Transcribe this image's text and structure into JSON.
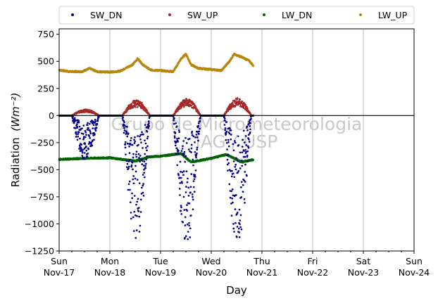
{
  "chart_data": {
    "type": "scatter",
    "xlabel": "Day",
    "ylabel": "Radiation",
    "ylabel_units": "(Wm⁻²)",
    "ylim": [
      -1250,
      800
    ],
    "yticks": [
      750,
      500,
      250,
      0,
      -250,
      -500,
      -750,
      -1000,
      -1250
    ],
    "x_range_days": [
      0,
      7
    ],
    "x_tick_labels": [
      {
        "day": 0,
        "weekday": "Sun",
        "date": "Nov-17"
      },
      {
        "day": 1,
        "weekday": "Mon",
        "date": "Nov-18"
      },
      {
        "day": 2,
        "weekday": "Tue",
        "date": "Nov-19"
      },
      {
        "day": 3,
        "weekday": "Wed",
        "date": "Nov-20"
      },
      {
        "day": 4,
        "weekday": "Thu",
        "date": "Nov-21"
      },
      {
        "day": 5,
        "weekday": "Fri",
        "date": "Nov-22"
      },
      {
        "day": 6,
        "weekday": "Sat",
        "date": "Nov-23"
      },
      {
        "day": 7,
        "weekday": "Sun",
        "date": "Nov-24"
      }
    ],
    "grid": "vertical",
    "zero_line": true,
    "legend_position": "top, outside plot",
    "watermark": [
      "Grupo de Micrometeorologia",
      "IAG / USP"
    ],
    "data_end_day": 3.83,
    "series": [
      {
        "name": "SW_DN",
        "color": "#00008b",
        "daily_min": [
          -400,
          -1100,
          -1140,
          -1140
        ],
        "night_value": 0
      },
      {
        "name": "SW_UP",
        "color": "#a52a2a",
        "daily_max": [
          55,
          140,
          150,
          155
        ],
        "night_value": 0
      },
      {
        "name": "LW_DN",
        "color": "#006400",
        "night_value": -395,
        "day_value": -350,
        "points": [
          [
            0,
            -405
          ],
          [
            0.5,
            -395
          ],
          [
            1,
            -390
          ],
          [
            1.5,
            -420
          ],
          [
            1.8,
            -380
          ],
          [
            2,
            -375
          ],
          [
            2.4,
            -350
          ],
          [
            2.6,
            -430
          ],
          [
            3,
            -395
          ],
          [
            3.3,
            -360
          ],
          [
            3.6,
            -430
          ],
          [
            3.8,
            -410
          ]
        ]
      },
      {
        "name": "LW_UP",
        "color": "#b8860b",
        "points": [
          [
            0,
            420
          ],
          [
            0.2,
            405
          ],
          [
            0.45,
            405
          ],
          [
            0.6,
            435
          ],
          [
            0.75,
            405
          ],
          [
            1,
            400
          ],
          [
            1.2,
            410
          ],
          [
            1.45,
            470
          ],
          [
            1.55,
            525
          ],
          [
            1.65,
            470
          ],
          [
            1.8,
            420
          ],
          [
            2,
            415
          ],
          [
            2.25,
            405
          ],
          [
            2.4,
            520
          ],
          [
            2.5,
            570
          ],
          [
            2.6,
            470
          ],
          [
            2.75,
            435
          ],
          [
            3,
            425
          ],
          [
            3.2,
            415
          ],
          [
            3.35,
            495
          ],
          [
            3.45,
            565
          ],
          [
            3.6,
            540
          ],
          [
            3.75,
            505
          ],
          [
            3.83,
            460
          ]
        ]
      }
    ]
  },
  "legend": [
    "SW_DN",
    "SW_UP",
    "LW_DN",
    "LW_UP"
  ]
}
